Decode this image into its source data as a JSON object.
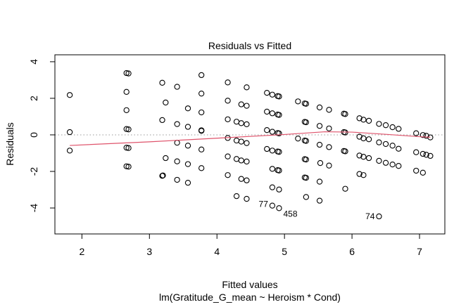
{
  "chart_data": {
    "type": "scatter",
    "title": "Residuals vs Fitted",
    "xlabel": "Fitted values",
    "sublabel": "lm(Gratitude_G_mean ~ Heroism * Cond)",
    "ylabel": "Residuals",
    "xlim": [
      1.6,
      7.375
    ],
    "ylim": [
      -5.42,
      4.38
    ],
    "xticks": [
      2,
      3,
      4,
      5,
      6,
      7
    ],
    "xtick_labels": [
      "2",
      "3",
      "4",
      "5",
      "6",
      "7"
    ],
    "yticks": [
      4,
      2,
      0,
      -2,
      -4
    ],
    "ytick_labels": [
      "4",
      "2",
      "0",
      "-2",
      "-4"
    ],
    "reference_line": 0,
    "smooth_color": "#df536b",
    "points": [
      [
        1.82,
        2.18
      ],
      [
        1.82,
        0.15
      ],
      [
        1.82,
        -0.86
      ],
      [
        2.66,
        3.38
      ],
      [
        2.69,
        3.36
      ],
      [
        2.66,
        2.35
      ],
      [
        2.66,
        1.35
      ],
      [
        2.66,
        0.32
      ],
      [
        2.69,
        0.3
      ],
      [
        2.66,
        -0.7
      ],
      [
        2.69,
        -0.72
      ],
      [
        2.66,
        -1.72
      ],
      [
        2.69,
        -1.74
      ],
      [
        3.19,
        2.85
      ],
      [
        3.19,
        0.81
      ],
      [
        3.19,
        -2.24
      ],
      [
        3.2,
        -2.22
      ],
      [
        3.24,
        1.77
      ],
      [
        3.24,
        -1.27
      ],
      [
        3.41,
        2.63
      ],
      [
        3.41,
        0.59
      ],
      [
        3.41,
        -0.43
      ],
      [
        3.41,
        -1.45
      ],
      [
        3.41,
        -2.46
      ],
      [
        3.57,
        1.45
      ],
      [
        3.57,
        0.44
      ],
      [
        3.57,
        -0.59
      ],
      [
        3.57,
        -1.6
      ],
      [
        3.57,
        -2.62
      ],
      [
        3.77,
        3.27
      ],
      [
        3.77,
        2.26
      ],
      [
        3.77,
        1.23
      ],
      [
        3.77,
        0.22
      ],
      [
        3.77,
        0.25
      ],
      [
        3.77,
        -0.8
      ],
      [
        3.77,
        -1.82
      ],
      [
        4.16,
        2.87
      ],
      [
        4.16,
        1.87
      ],
      [
        4.16,
        0.85
      ],
      [
        4.16,
        -0.17
      ],
      [
        4.16,
        -1.18
      ],
      [
        4.16,
        -2.2
      ],
      [
        4.29,
        0.72
      ],
      [
        4.29,
        -0.31
      ],
      [
        4.29,
        -1.32
      ],
      [
        4.29,
        -3.35
      ],
      [
        4.36,
        1.67
      ],
      [
        4.36,
        0.64
      ],
      [
        4.36,
        -0.37
      ],
      [
        4.36,
        -1.4
      ],
      [
        4.36,
        -2.41
      ],
      [
        4.44,
        2.6
      ],
      [
        4.44,
        1.59
      ],
      [
        4.44,
        0.58
      ],
      [
        4.44,
        -0.45
      ],
      [
        4.44,
        -1.46
      ],
      [
        4.44,
        -2.49
      ],
      [
        4.44,
        -3.5
      ],
      [
        4.74,
        2.3
      ],
      [
        4.74,
        1.27
      ],
      [
        4.74,
        0.26
      ],
      [
        4.74,
        -0.77
      ],
      [
        4.82,
        2.2
      ],
      [
        4.82,
        1.18
      ],
      [
        4.82,
        0.17
      ],
      [
        4.82,
        -0.86
      ],
      [
        4.82,
        -1.86
      ],
      [
        4.82,
        -2.87
      ],
      [
        4.82,
        -3.87
      ],
      [
        4.9,
        2.12
      ],
      [
        4.92,
        2.1
      ],
      [
        4.9,
        1.11
      ],
      [
        4.92,
        1.09
      ],
      [
        4.9,
        0.1
      ],
      [
        4.92,
        0.08
      ],
      [
        4.9,
        -0.91
      ],
      [
        4.92,
        -0.93
      ],
      [
        4.9,
        -1.93
      ],
      [
        4.92,
        -1.95
      ],
      [
        4.92,
        -2.99
      ],
      [
        4.92,
        -4.01
      ],
      [
        5.2,
        1.83
      ],
      [
        5.2,
        -0.2
      ],
      [
        5.3,
        1.72
      ],
      [
        5.32,
        1.7
      ],
      [
        5.3,
        0.71
      ],
      [
        5.32,
        0.69
      ],
      [
        5.3,
        -0.31
      ],
      [
        5.32,
        -0.33
      ],
      [
        5.3,
        -1.33
      ],
      [
        5.32,
        -1.35
      ],
      [
        5.3,
        -2.33
      ],
      [
        5.32,
        -2.35
      ],
      [
        5.32,
        -3.4
      ],
      [
        5.52,
        1.5
      ],
      [
        5.52,
        0.49
      ],
      [
        5.52,
        -0.54
      ],
      [
        5.53,
        -1.54
      ],
      [
        5.52,
        -2.56
      ],
      [
        5.52,
        -3.6
      ],
      [
        5.66,
        1.37
      ],
      [
        5.66,
        0.35
      ],
      [
        5.66,
        -0.67
      ],
      [
        5.66,
        -1.68
      ],
      [
        5.88,
        1.16
      ],
      [
        5.9,
        1.14
      ],
      [
        5.88,
        0.15
      ],
      [
        5.9,
        0.13
      ],
      [
        5.88,
        -0.88
      ],
      [
        5.9,
        -0.9
      ],
      [
        5.9,
        -2.95
      ],
      [
        6.11,
        0.91
      ],
      [
        6.11,
        -0.1
      ],
      [
        6.11,
        -1.13
      ],
      [
        6.11,
        -2.14
      ],
      [
        6.17,
        0.83
      ],
      [
        6.17,
        -0.19
      ],
      [
        6.17,
        -1.2
      ],
      [
        6.17,
        -2.2
      ],
      [
        6.25,
        0.77
      ],
      [
        6.25,
        -0.24
      ],
      [
        6.25,
        -1.27
      ],
      [
        6.4,
        0.6
      ],
      [
        6.4,
        -0.41
      ],
      [
        6.4,
        -1.42
      ],
      [
        6.4,
        -4.46
      ],
      [
        6.5,
        0.53
      ],
      [
        6.5,
        -0.5
      ],
      [
        6.5,
        -1.53
      ],
      [
        6.6,
        0.42
      ],
      [
        6.6,
        -0.59
      ],
      [
        6.6,
        -1.62
      ],
      [
        6.69,
        0.33
      ],
      [
        6.69,
        -0.76
      ],
      [
        6.69,
        -1.7
      ],
      [
        6.95,
        0.09
      ],
      [
        6.95,
        -0.95
      ],
      [
        6.95,
        -1.96
      ],
      [
        7.05,
        -0.01
      ],
      [
        7.05,
        -1.04
      ],
      [
        7.05,
        -2.07
      ],
      [
        7.1,
        -0.05
      ],
      [
        7.1,
        -1.09
      ],
      [
        7.16,
        -0.14
      ],
      [
        7.16,
        -1.15
      ]
    ],
    "smooth": [
      [
        1.82,
        -0.58
      ],
      [
        3.0,
        -0.38
      ],
      [
        4.16,
        -0.15
      ],
      [
        5.0,
        0.02
      ],
      [
        5.6,
        0.17
      ],
      [
        6.0,
        0.15
      ],
      [
        6.5,
        0.03
      ],
      [
        7.0,
        -0.1
      ],
      [
        7.16,
        -0.13
      ]
    ],
    "annotations": [
      {
        "label": "77",
        "x": 4.82,
        "y": -3.87
      },
      {
        "label": "458",
        "x": 4.92,
        "y": -4.01
      },
      {
        "label": "74",
        "x": 6.4,
        "y": -4.46
      }
    ]
  }
}
